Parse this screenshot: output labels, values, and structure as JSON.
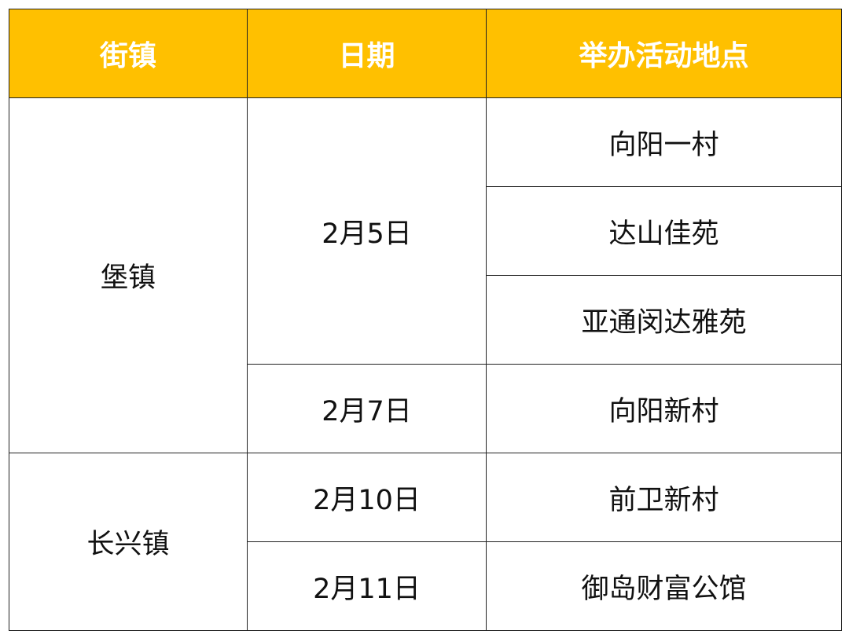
{
  "header": {
    "colors": {
      "header_bg": "#FFC000",
      "header_text": "#FFFFFF"
    },
    "columns": [
      "街镇",
      "日期",
      "举办活动地点"
    ]
  },
  "groups": [
    {
      "town": "堡镇",
      "dates": [
        {
          "date": "2月5日",
          "places": [
            "向阳一村",
            "达山佳苑",
            "亚通闵达雅苑"
          ]
        },
        {
          "date": "2月7日",
          "places": [
            "向阳新村"
          ]
        }
      ]
    },
    {
      "town": "长兴镇",
      "dates": [
        {
          "date": "2月10日",
          "places": [
            "前卫新村"
          ]
        },
        {
          "date": "2月11日",
          "places": [
            "御岛财富公馆"
          ]
        }
      ]
    }
  ]
}
